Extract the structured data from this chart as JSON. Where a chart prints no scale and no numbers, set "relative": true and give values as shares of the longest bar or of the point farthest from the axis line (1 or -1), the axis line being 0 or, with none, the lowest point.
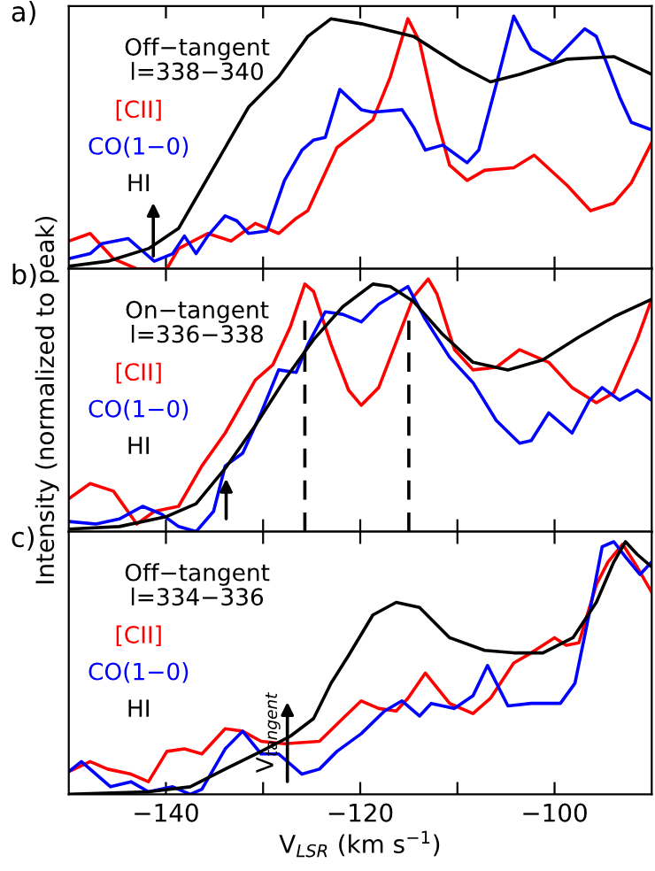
{
  "chart_data": [
    {
      "type": "line",
      "title": "a)",
      "subtitle": "Off−tangent\nl=338−340",
      "relative": true,
      "legend": false,
      "tick_labels": false,
      "grid": false,
      "xlim": [
        -150,
        -90
      ],
      "xticks": [
        {
          "value": -140,
          "label": null
        },
        {
          "value": -130,
          "label": null
        },
        {
          "value": -120,
          "label": null
        },
        {
          "value": -110,
          "label": null
        },
        {
          "value": -100,
          "label": null
        }
      ],
      "series": [
        {
          "name": "[CII]",
          "color": "#ff0000",
          "x": [
            -150,
            -147.8,
            -145.4,
            -143,
            -139.9,
            -138.7,
            -135.7,
            -133.3,
            -130.8,
            -128.4,
            -126.6,
            -125.4,
            -122.4,
            -118.7,
            -116.9,
            -115.1,
            -113.9,
            -112.1,
            -110.8,
            -109,
            -107.2,
            -104.2,
            -102.1,
            -98.7,
            -96.3,
            -93.9,
            -92.1,
            -90
          ],
          "values": [
            0.11,
            0.14,
            0.04,
            0.0,
            0.0,
            0.08,
            0.14,
            0.11,
            0.18,
            0.14,
            0.2,
            0.23,
            0.48,
            0.59,
            0.76,
            0.99,
            0.9,
            0.59,
            0.41,
            0.35,
            0.39,
            0.4,
            0.45,
            0.33,
            0.23,
            0.26,
            0.34,
            0.5
          ]
        },
        {
          "name": "CO(1−0)",
          "color": "#0000ff",
          "x": [
            -150,
            -147.8,
            -146.6,
            -143.9,
            -142.4,
            -141.2,
            -139.3,
            -138.1,
            -136.9,
            -135.7,
            -133.9,
            -132.7,
            -131.5,
            -129.6,
            -127.8,
            -126,
            -124.8,
            -123.6,
            -122.1,
            -119.9,
            -118.7,
            -115.7,
            -114.5,
            -113.3,
            -111.5,
            -109,
            -107.8,
            -106,
            -104.2,
            -102.4,
            -100.2,
            -96.9,
            -95.7,
            -93.3,
            -92.1,
            -90
          ],
          "values": [
            0.04,
            0.06,
            0.1,
            0.12,
            0.07,
            0.03,
            0.06,
            0.13,
            0.06,
            0.13,
            0.21,
            0.19,
            0.14,
            0.15,
            0.35,
            0.47,
            0.51,
            0.52,
            0.71,
            0.63,
            0.62,
            0.63,
            0.56,
            0.47,
            0.49,
            0.42,
            0.47,
            0.73,
            1.0,
            0.87,
            0.82,
            0.95,
            0.92,
            0.68,
            0.58,
            0.55
          ]
        },
        {
          "name": "HI",
          "color": "#000000",
          "x": [
            -150,
            -146,
            -141.8,
            -138.7,
            -135.7,
            -131.5,
            -128.4,
            -125.4,
            -123,
            -119.9,
            -114.5,
            -109.6,
            -106.6,
            -103.6,
            -98.7,
            -93.9,
            -90
          ],
          "values": [
            0.01,
            0.03,
            0.08,
            0.16,
            0.36,
            0.64,
            0.76,
            0.92,
            0.99,
            0.97,
            0.92,
            0.8,
            0.74,
            0.77,
            0.83,
            0.84,
            0.77
          ]
        }
      ]
    },
    {
      "type": "line",
      "title": "b)",
      "subtitle": "On−tangent\nl=336−338",
      "ylabel": "Intensity (normalized to peak)",
      "relative": true,
      "legend": false,
      "tick_labels": false,
      "grid": false,
      "xlim": [
        -150,
        -90
      ],
      "xticks": [
        {
          "value": -140,
          "label": null
        },
        {
          "value": -130,
          "label": null
        },
        {
          "value": -120,
          "label": null
        },
        {
          "value": -110,
          "label": null
        },
        {
          "value": -100,
          "label": null
        }
      ],
      "ref_lines": [
        {
          "axis": "x",
          "value": -125.7,
          "line_style": "dashed",
          "color": "#000000"
        },
        {
          "axis": "x",
          "value": -115.0,
          "line_style": "dashed",
          "color": "#000000"
        }
      ],
      "series": [
        {
          "name": "[CII]",
          "color": "#ff0000",
          "x": [
            -150,
            -147.8,
            -145.4,
            -143,
            -141.2,
            -138.7,
            -136.3,
            -133.9,
            -130.8,
            -129,
            -127.2,
            -125.7,
            -124.8,
            -123,
            -121.2,
            -119.9,
            -118.1,
            -115.7,
            -114.5,
            -113,
            -112.1,
            -110.3,
            -108.4,
            -106,
            -103.6,
            -100.6,
            -98.2,
            -95.7,
            -93.9,
            -91.5,
            -90
          ],
          "values": [
            0.13,
            0.19,
            0.16,
            0.03,
            0.08,
            0.1,
            0.26,
            0.39,
            0.6,
            0.66,
            0.81,
            0.98,
            0.95,
            0.74,
            0.56,
            0.5,
            0.57,
            0.81,
            0.93,
            1.0,
            0.94,
            0.72,
            0.64,
            0.65,
            0.72,
            0.67,
            0.57,
            0.51,
            0.55,
            0.76,
            0.92
          ]
        },
        {
          "name": "CO(1−0)",
          "color": "#0000ff",
          "x": [
            -150,
            -147.2,
            -144.8,
            -142.4,
            -140.5,
            -138.7,
            -136.9,
            -135.1,
            -133.9,
            -132.1,
            -130.2,
            -128.4,
            -126.6,
            -125.4,
            -123.6,
            -121.8,
            -119.9,
            -118.1,
            -115.1,
            -113.3,
            -110.8,
            -108.4,
            -106,
            -103.6,
            -102.4,
            -100.6,
            -98.2,
            -96.4,
            -95.1,
            -93.3,
            -91.5,
            -90
          ],
          "values": [
            0.04,
            0.03,
            0.05,
            0.1,
            0.07,
            0.02,
            0.0,
            0.08,
            0.26,
            0.31,
            0.47,
            0.64,
            0.63,
            0.74,
            0.87,
            0.86,
            0.83,
            0.9,
            0.97,
            0.84,
            0.69,
            0.59,
            0.44,
            0.35,
            0.36,
            0.47,
            0.39,
            0.52,
            0.57,
            0.52,
            0.56,
            0.52
          ]
        },
        {
          "name": "HI",
          "color": "#000000",
          "x": [
            -150,
            -144.8,
            -139.9,
            -136.9,
            -133.9,
            -130.8,
            -127.8,
            -124.8,
            -121.8,
            -118.7,
            -116.9,
            -114.5,
            -111.5,
            -108.4,
            -104.8,
            -101.2,
            -97.5,
            -93.9,
            -90
          ],
          "values": [
            0.01,
            0.02,
            0.06,
            0.11,
            0.25,
            0.42,
            0.6,
            0.76,
            0.89,
            0.98,
            0.97,
            0.91,
            0.78,
            0.67,
            0.64,
            0.68,
            0.77,
            0.85,
            0.92
          ]
        }
      ]
    },
    {
      "type": "line",
      "title": "c)",
      "subtitle": "Off−tangent\nl=334−336",
      "xlabel": "V$_{LSR}$ (km s$^{−1}$)",
      "relative": true,
      "legend": false,
      "tick_labels": "x",
      "grid": false,
      "xlim": [
        -150,
        -90
      ],
      "xticks": [
        -140,
        {
          "value": -130,
          "label": null
        },
        -120,
        {
          "value": -110,
          "label": null
        },
        -100
      ],
      "annotations": [
        "V$_{tangent}$"
      ],
      "series": [
        {
          "name": "[CII]",
          "color": "#ff0000",
          "x": [
            -150,
            -147.8,
            -146,
            -143.6,
            -141.8,
            -139.9,
            -138.1,
            -136.3,
            -133.9,
            -132.1,
            -130.2,
            -127.8,
            -124.2,
            -121.8,
            -119.9,
            -118.1,
            -116.3,
            -115.1,
            -113.3,
            -110.8,
            -108.4,
            -106.6,
            -104.2,
            -102.4,
            -100,
            -98.8,
            -97.5,
            -95.7,
            -94.5,
            -93,
            -91.5,
            -90
          ],
          "values": [
            0.09,
            0.13,
            0.1,
            0.08,
            0.05,
            0.17,
            0.18,
            0.16,
            0.26,
            0.25,
            0.21,
            0.2,
            0.21,
            0.3,
            0.37,
            0.34,
            0.33,
            0.38,
            0.48,
            0.36,
            0.32,
            0.38,
            0.52,
            0.56,
            0.62,
            0.59,
            0.6,
            0.83,
            0.92,
            0.99,
            0.9,
            0.8
          ]
        },
        {
          "name": "CO(1−0)",
          "color": "#0000ff",
          "x": [
            -150,
            -148.7,
            -147.2,
            -145.7,
            -143.6,
            -141.8,
            -139.3,
            -137.5,
            -136.3,
            -133.9,
            -132.1,
            -130.2,
            -128.4,
            -126,
            -124.2,
            -122.4,
            -119.9,
            -117.5,
            -115.7,
            -113.9,
            -112.7,
            -110.3,
            -108.4,
            -106.9,
            -104.8,
            -102.4,
            -99.4,
            -97.9,
            -96.3,
            -95.1,
            -93.9,
            -92.7,
            -91.2,
            -90
          ],
          "values": [
            0.09,
            0.13,
            0.08,
            0.03,
            0.05,
            0.01,
            0.03,
            0.0,
            0.02,
            0.18,
            0.25,
            0.16,
            0.16,
            0.08,
            0.1,
            0.17,
            0.24,
            0.33,
            0.37,
            0.31,
            0.36,
            0.34,
            0.39,
            0.51,
            0.35,
            0.36,
            0.36,
            0.44,
            0.74,
            0.98,
            1.0,
            0.94,
            0.87,
            0.92
          ]
        },
        {
          "name": "HI",
          "color": "#000000",
          "x": [
            -150,
            -141.8,
            -137.5,
            -133.9,
            -130.2,
            -127.2,
            -124.8,
            -123,
            -121.2,
            -118.7,
            -116.3,
            -113.9,
            -110.8,
            -107.2,
            -104.2,
            -101.2,
            -98.1,
            -95.7,
            -93.9,
            -92.7,
            -91.5,
            -90
          ],
          "values": [
            0.0,
            0.01,
            0.03,
            0.1,
            0.17,
            0.23,
            0.3,
            0.44,
            0.55,
            0.71,
            0.76,
            0.74,
            0.62,
            0.57,
            0.56,
            0.56,
            0.62,
            0.76,
            0.92,
            1.0,
            0.95,
            0.9
          ]
        }
      ]
    }
  ]
}
